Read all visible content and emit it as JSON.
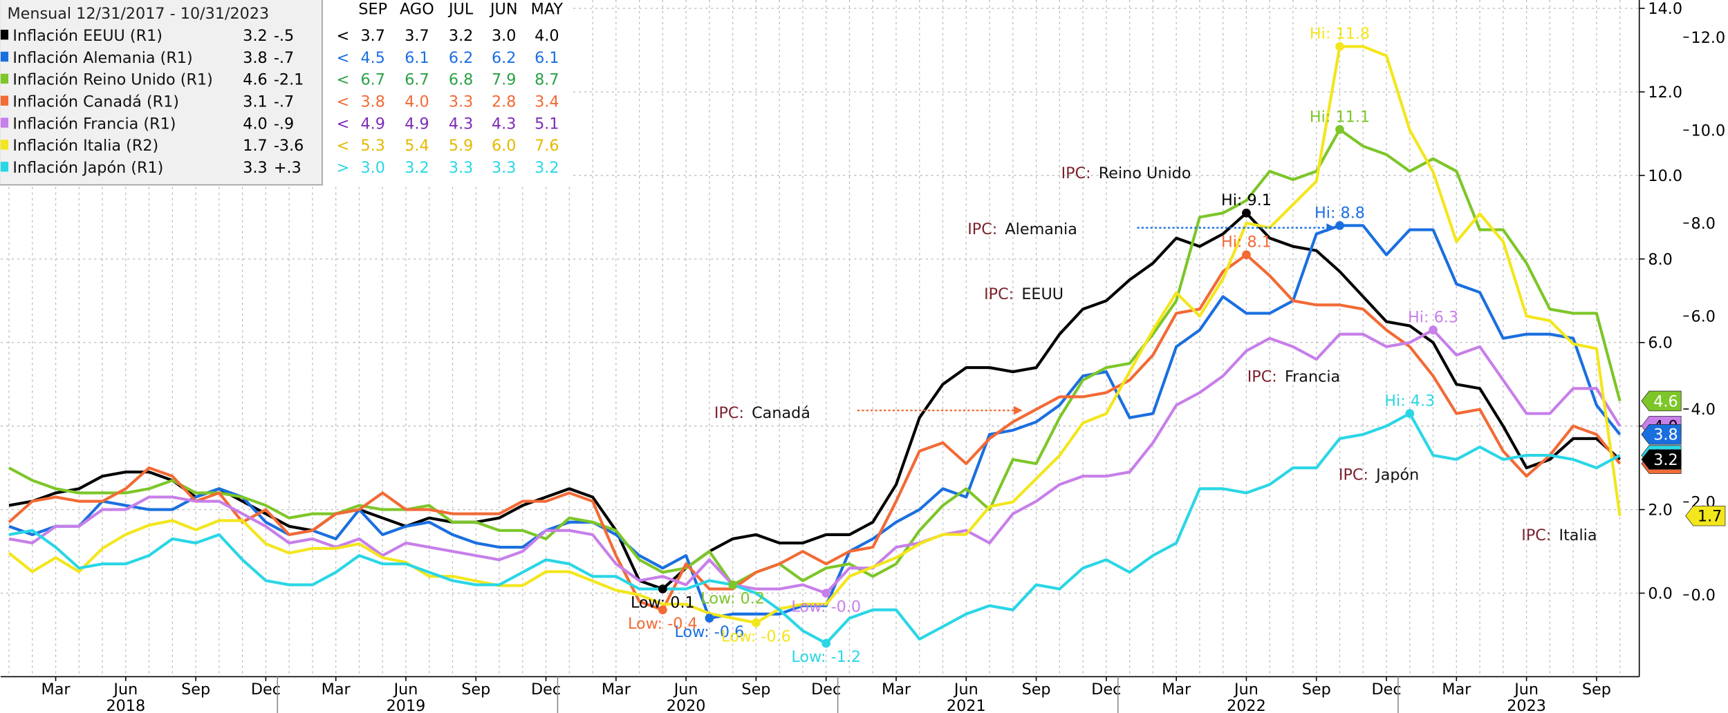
{
  "chart_data": {
    "type": "line",
    "legend_header": "Mensual 12/31/2017 - 10/31/2023",
    "legend_columns": [
      "SEP",
      "AGO",
      "JUL",
      "JUN",
      "MAY"
    ],
    "categories": [
      null,
      null,
      "Mar",
      null,
      null,
      "Jun",
      null,
      null,
      "Sep",
      null,
      null,
      "Dec",
      null,
      null,
      "Mar",
      null,
      null,
      "Jun",
      null,
      null,
      "Sep",
      null,
      null,
      "Dec",
      null,
      null,
      "Mar",
      null,
      null,
      "Jun",
      null,
      null,
      "Sep",
      null,
      null,
      "Dec",
      null,
      null,
      "Mar",
      null,
      null,
      "Jun",
      null,
      null,
      "Sep",
      null,
      null,
      "Dec",
      null,
      null,
      "Mar",
      null,
      null,
      "Jun",
      null,
      null,
      "Sep",
      null,
      null,
      "Dec",
      null,
      null,
      "Mar",
      null,
      null,
      "Jun",
      null,
      null,
      "Sep",
      null
    ],
    "category_years": [
      null,
      null,
      null,
      null,
      null,
      "2018",
      null,
      null,
      null,
      null,
      null,
      null,
      null,
      null,
      null,
      null,
      null,
      "2019",
      null,
      null,
      null,
      null,
      null,
      null,
      null,
      null,
      null,
      null,
      null,
      "2020",
      null,
      null,
      null,
      null,
      null,
      null,
      null,
      null,
      null,
      null,
      null,
      "2021",
      null,
      null,
      null,
      null,
      null,
      null,
      null,
      null,
      null,
      null,
      null,
      "2022",
      null,
      null,
      null,
      null,
      null,
      null,
      null,
      null,
      null,
      null,
      null,
      "2023",
      null,
      null,
      null,
      null
    ],
    "ylim": [
      -2,
      14.2
    ],
    "yticks": [
      {
        "value": 0,
        "label": "0.0"
      },
      {
        "value": 2,
        "label": "2.0"
      },
      {
        "value": 4,
        "label": "4.0"
      },
      {
        "value": 6,
        "label": "6.0"
      },
      {
        "value": 8,
        "label": "8.0"
      },
      {
        "value": 10,
        "label": "10.0"
      },
      {
        "value": 12,
        "label": "12.0"
      },
      {
        "value": 14,
        "label": "14.0"
      }
    ],
    "y2lim": [
      -1.76,
      12.8
    ],
    "y2ticks": [
      {
        "value": 0,
        "label": "0.0"
      },
      {
        "value": 2,
        "label": "2.0"
      },
      {
        "value": 4,
        "label": "4.0"
      },
      {
        "value": 6,
        "label": "6.0"
      },
      {
        "value": 8,
        "label": "8.0"
      },
      {
        "value": 10,
        "label": "10.0"
      },
      {
        "value": 12,
        "label": "12.0"
      }
    ],
    "grid": true,
    "series": [
      {
        "name": "Inflación EEUU (R1)",
        "color": "#000000",
        "legend_last": "3.2",
        "legend_change": "-.5",
        "arrow": "<",
        "recent": [
          "3.7",
          "3.7",
          "3.2",
          "3.0",
          "4.0"
        ],
        "high_label": "Hi: 9.1",
        "low_label": "Low: 0.1",
        "end_label": "3.2",
        "values": [
          2.1,
          2.2,
          2.4,
          2.5,
          2.8,
          2.9,
          2.9,
          2.7,
          2.3,
          2.5,
          2.2,
          1.9,
          1.6,
          1.5,
          1.9,
          2.0,
          1.8,
          1.6,
          1.8,
          1.7,
          1.7,
          1.8,
          2.1,
          2.3,
          2.5,
          2.3,
          1.5,
          0.3,
          0.1,
          0.6,
          1.0,
          1.3,
          1.4,
          1.2,
          1.2,
          1.4,
          1.4,
          1.7,
          2.6,
          4.2,
          5.0,
          5.4,
          5.4,
          5.3,
          5.4,
          6.2,
          6.8,
          7.0,
          7.5,
          7.9,
          8.5,
          8.3,
          8.6,
          9.1,
          8.5,
          8.3,
          8.2,
          7.7,
          7.1,
          6.5,
          6.4,
          6.0,
          5.0,
          4.9,
          4.0,
          3.0,
          3.2,
          3.7,
          3.7,
          3.2
        ]
      },
      {
        "name": "Inflación Alemania (R1)",
        "color": "#1a6fdf",
        "legend_last": "3.8",
        "legend_change": "-.7",
        "arrow": "<",
        "recent": [
          "4.5",
          "6.1",
          "6.2",
          "6.2",
          "6.1"
        ],
        "high_label": "Hi: 8.8",
        "low_label": "Low: -0.6",
        "end_label": "3.8",
        "values": [
          1.6,
          1.4,
          1.6,
          1.6,
          2.2,
          2.1,
          2.0,
          2.0,
          2.3,
          2.5,
          2.3,
          1.7,
          1.4,
          1.5,
          1.3,
          2.0,
          1.4,
          1.6,
          1.7,
          1.4,
          1.2,
          1.1,
          1.1,
          1.5,
          1.7,
          1.7,
          1.4,
          0.9,
          0.6,
          0.9,
          -0.6,
          -0.5,
          -0.5,
          -0.5,
          -0.3,
          -0.3,
          1.0,
          1.3,
          1.7,
          2.0,
          2.5,
          2.3,
          3.8,
          3.9,
          4.1,
          4.5,
          5.2,
          5.3,
          4.2,
          4.3,
          5.9,
          6.3,
          7.1,
          6.7,
          6.7,
          7.0,
          8.6,
          8.8,
          8.8,
          8.1,
          8.7,
          8.7,
          7.4,
          7.2,
          6.1,
          6.2,
          6.2,
          6.1,
          4.5,
          3.8
        ]
      },
      {
        "name": "Inflación Reino Unido (R1)",
        "color": "#7dc629",
        "legend_last": "4.6",
        "legend_change": "-2.1",
        "arrow": "<",
        "recent": [
          "6.7",
          "6.7",
          "6.8",
          "7.9",
          "8.7"
        ],
        "high_label": "Hi: 11.1",
        "low_label": "Low: 0.2",
        "end_label": "4.6",
        "values": [
          3.0,
          2.7,
          2.5,
          2.4,
          2.4,
          2.4,
          2.5,
          2.7,
          2.4,
          2.4,
          2.3,
          2.1,
          1.8,
          1.9,
          1.9,
          2.1,
          2.0,
          2.0,
          2.1,
          1.7,
          1.7,
          1.5,
          1.5,
          1.3,
          1.8,
          1.7,
          1.5,
          0.8,
          0.5,
          0.6,
          1.0,
          0.2,
          0.5,
          0.7,
          0.3,
          0.6,
          0.7,
          0.4,
          0.7,
          1.5,
          2.1,
          2.5,
          2.0,
          3.2,
          3.1,
          4.2,
          5.1,
          5.4,
          5.5,
          6.2,
          7.0,
          9.0,
          9.1,
          9.4,
          10.1,
          9.9,
          10.1,
          11.1,
          10.7,
          10.5,
          10.1,
          10.4,
          10.1,
          8.7,
          8.7,
          7.9,
          6.8,
          6.7,
          6.7,
          4.6
        ]
      },
      {
        "name": "Inflación Canadá (R1)",
        "color": "#f26a35",
        "legend_last": "3.1",
        "legend_change": "-.7",
        "arrow": "<",
        "recent": [
          "3.8",
          "4.0",
          "3.3",
          "2.8",
          "3.4"
        ],
        "high_label": "Hi: 8.1",
        "low_label": "Low: -0.4",
        "end_label": "3.1",
        "values": [
          1.7,
          2.2,
          2.3,
          2.2,
          2.2,
          2.5,
          3.0,
          2.8,
          2.2,
          2.4,
          1.7,
          2.0,
          1.4,
          1.5,
          1.9,
          2.0,
          2.4,
          2.0,
          2.0,
          1.9,
          1.9,
          1.9,
          2.2,
          2.2,
          2.4,
          2.2,
          0.9,
          -0.2,
          -0.4,
          0.7,
          0.1,
          0.1,
          0.5,
          0.7,
          1.0,
          0.7,
          1.0,
          1.1,
          2.2,
          3.4,
          3.6,
          3.1,
          3.7,
          4.1,
          4.4,
          4.7,
          4.7,
          4.8,
          5.1,
          5.7,
          6.7,
          6.8,
          7.7,
          8.1,
          7.6,
          7.0,
          6.9,
          6.9,
          6.8,
          6.3,
          5.9,
          5.2,
          4.3,
          4.4,
          3.4,
          2.8,
          3.3,
          4.0,
          3.8,
          3.1
        ]
      },
      {
        "name": "Inflación Francia (R1)",
        "color": "#c77fe9",
        "legend_last": "4.0",
        "legend_change": "-.9",
        "arrow": "<",
        "recent": [
          "4.9",
          "4.9",
          "4.3",
          "4.3",
          "5.1"
        ],
        "high_label": "Hi: 6.3",
        "low_label": "Low: -0.0",
        "end_label": "4.0",
        "values": [
          1.3,
          1.2,
          1.6,
          1.6,
          2.0,
          2.0,
          2.3,
          2.3,
          2.2,
          2.2,
          1.9,
          1.6,
          1.2,
          1.3,
          1.1,
          1.3,
          0.9,
          1.2,
          1.1,
          1.0,
          0.9,
          0.8,
          1.0,
          1.5,
          1.5,
          1.4,
          0.7,
          0.3,
          0.4,
          0.2,
          0.8,
          0.2,
          0.1,
          0.1,
          0.2,
          0.0,
          0.6,
          0.6,
          1.1,
          1.2,
          1.4,
          1.5,
          1.2,
          1.9,
          2.2,
          2.6,
          2.8,
          2.8,
          2.9,
          3.6,
          4.5,
          4.8,
          5.2,
          5.8,
          6.1,
          5.9,
          5.6,
          6.2,
          6.2,
          5.9,
          6.0,
          6.3,
          5.7,
          5.9,
          5.1,
          4.3,
          4.3,
          4.9,
          4.9,
          4.0
        ]
      },
      {
        "name": "Inflación Italia (R2)",
        "color": "#f3e61c",
        "axis": "y2",
        "legend_last": "1.7",
        "legend_change": "-3.6",
        "arrow": "<",
        "recent": [
          "5.3",
          "5.4",
          "5.9",
          "6.0",
          "7.6"
        ],
        "high_label": "Hi: 11.8",
        "low_label": "Low: -0.6",
        "end_label": "1.7",
        "values": [
          0.9,
          0.5,
          0.8,
          0.5,
          1.0,
          1.3,
          1.5,
          1.6,
          1.4,
          1.6,
          1.6,
          1.1,
          0.9,
          1.0,
          1.0,
          1.1,
          0.8,
          0.7,
          0.4,
          0.4,
          0.3,
          0.2,
          0.2,
          0.5,
          0.5,
          0.3,
          0.1,
          0.0,
          -0.2,
          -0.2,
          -0.4,
          -0.5,
          -0.6,
          -0.3,
          -0.2,
          -0.2,
          0.4,
          0.6,
          0.8,
          1.1,
          1.3,
          1.3,
          1.9,
          2.0,
          2.5,
          3.0,
          3.7,
          3.9,
          4.8,
          5.7,
          6.5,
          6.0,
          6.8,
          8.0,
          7.9,
          8.4,
          8.9,
          11.8,
          11.8,
          11.6,
          10.0,
          9.1,
          7.6,
          8.2,
          7.6,
          6.0,
          5.9,
          5.4,
          5.3,
          1.7
        ]
      },
      {
        "name": "Inflación Japón (R1)",
        "color": "#2ad6e6",
        "legend_last": "3.3",
        "legend_change": "+.3",
        "arrow": ">",
        "recent": [
          "3.0",
          "3.2",
          "3.3",
          "3.3",
          "3.2"
        ],
        "high_label": "Hi: 4.3",
        "low_label": "Low: -1.2",
        "end_label": "3.3",
        "values": [
          1.4,
          1.5,
          1.1,
          0.6,
          0.7,
          0.7,
          0.9,
          1.3,
          1.2,
          1.4,
          0.8,
          0.3,
          0.2,
          0.2,
          0.5,
          0.9,
          0.7,
          0.7,
          0.5,
          0.3,
          0.2,
          0.2,
          0.5,
          0.8,
          0.7,
          0.4,
          0.4,
          0.1,
          0.1,
          0.1,
          0.3,
          0.2,
          0.0,
          -0.4,
          -0.9,
          -1.2,
          -0.6,
          -0.4,
          -0.4,
          -1.1,
          -0.8,
          -0.5,
          -0.3,
          -0.4,
          0.2,
          0.1,
          0.6,
          0.8,
          0.5,
          0.9,
          1.2,
          2.5,
          2.5,
          2.4,
          2.6,
          3.0,
          3.0,
          3.7,
          3.8,
          4.0,
          4.3,
          3.3,
          3.2,
          3.5,
          3.2,
          3.3,
          3.3,
          3.2,
          3.0,
          3.3
        ]
      }
    ],
    "annotations": [
      {
        "prefix": "IPC:",
        "text": "Reino Unido"
      },
      {
        "prefix": "IPC:",
        "text": "Alemania"
      },
      {
        "prefix": "IPC:",
        "text": "EEUU"
      },
      {
        "prefix": "IPC:",
        "text": "Canadá"
      },
      {
        "prefix": "IPC:",
        "text": "Francia"
      },
      {
        "prefix": "IPC:",
        "text": "Japón"
      },
      {
        "prefix": "IPC:",
        "text": "Italia"
      }
    ]
  }
}
